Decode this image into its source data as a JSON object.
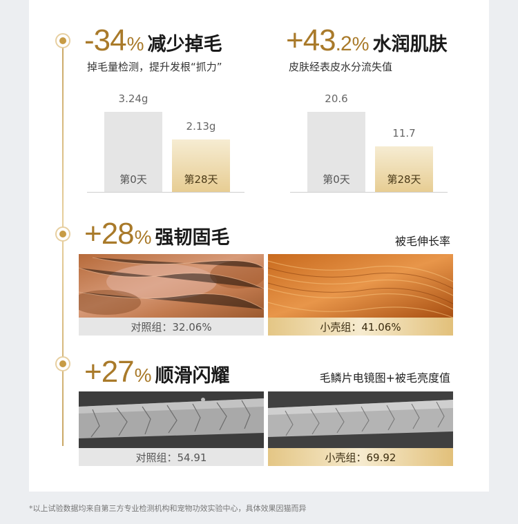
{
  "section1": {
    "left": {
      "number": "-34",
      "pct": "%",
      "title": "减少掉毛",
      "subtitle": "掉毛量检测，提升发根“抓力”",
      "bars": [
        {
          "label": "第0天",
          "value_text": "3.24g",
          "value": 3.24
        },
        {
          "label": "第28天",
          "value_text": "2.13g",
          "value": 2.13
        }
      ]
    },
    "right": {
      "number": "+43",
      "decimal": ".2",
      "pct": "%",
      "title": "水润肌肤",
      "subtitle": "皮肤经表皮水分流失值",
      "bars": [
        {
          "label": "第0天",
          "value_text": "20.6",
          "value": 20.6
        },
        {
          "label": "第28天",
          "value_text": "11.7",
          "value": 11.7
        }
      ]
    }
  },
  "section2": {
    "number": "+28",
    "pct": "%",
    "title": "强韧固毛",
    "right_label": "被毛伸长率",
    "captions": {
      "control": "对照组：32.06%",
      "product": "小壳组：41.06%"
    }
  },
  "section3": {
    "number": "+27",
    "pct": "%",
    "title": "顺滑闪耀",
    "right_label": "毛鳞片电镜图+被毛亮度值",
    "captions": {
      "control": "对照组：54.91",
      "product": "小壳组：69.92"
    }
  },
  "footnote": "*以上试验数据均来自第三方专业检测机构和宠物功效实验中心，具体效果因猫而异"
}
